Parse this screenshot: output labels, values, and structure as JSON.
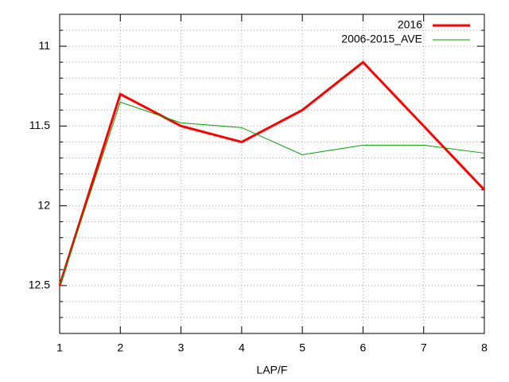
{
  "chart_data": {
    "type": "line",
    "xlabel": "LAP/F",
    "x": [
      1,
      2,
      3,
      4,
      5,
      6,
      7,
      8
    ],
    "xlim": [
      1,
      8
    ],
    "xticks": [
      1,
      2,
      3,
      4,
      5,
      6,
      7,
      8
    ],
    "ylim": [
      10.8,
      12.8
    ],
    "y_reversed": true,
    "yticks": [
      11,
      11.5,
      12,
      12.5
    ],
    "y_minor_ticks": [
      10.9,
      11.1,
      11.2,
      11.3,
      11.4,
      11.6,
      11.7,
      11.8,
      11.9,
      12.1,
      12.2,
      12.3,
      12.4,
      12.6,
      12.7
    ],
    "grid": true,
    "legend": "top-right",
    "series": [
      {
        "name": "2016",
        "color": "#ff0000",
        "width": 3,
        "values": [
          12.5,
          11.3,
          11.5,
          11.6,
          11.4,
          11.1,
          11.5,
          11.9
        ]
      },
      {
        "name": "2006-2015_AVE",
        "color": "#00a000",
        "width": 1,
        "values": [
          12.5,
          11.35,
          11.48,
          11.51,
          11.68,
          11.62,
          11.62,
          11.67
        ]
      }
    ]
  }
}
